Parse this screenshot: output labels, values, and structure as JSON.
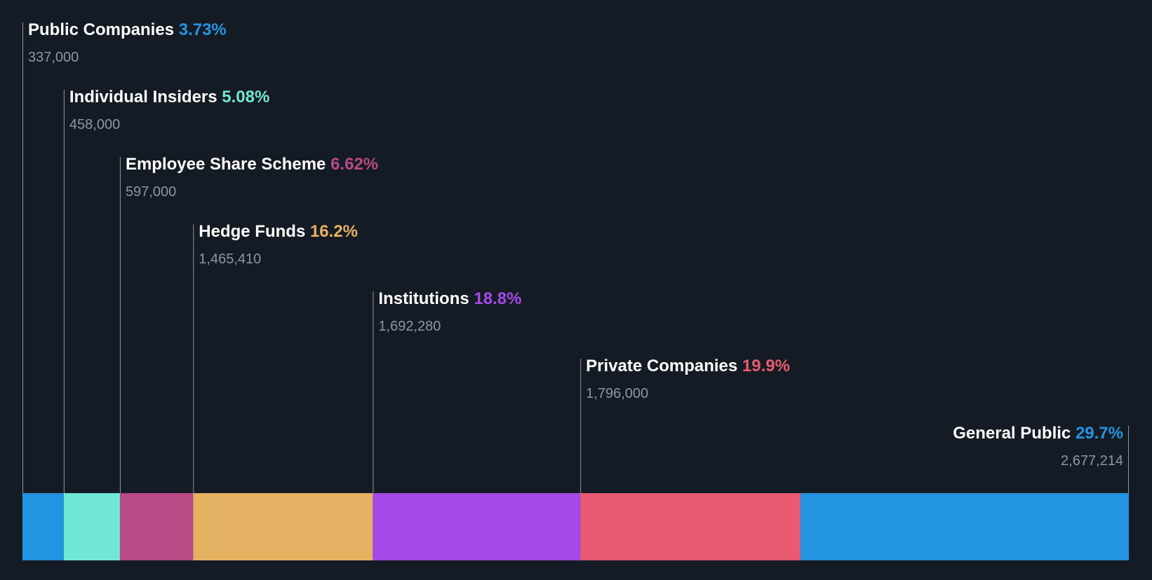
{
  "chart_data": {
    "type": "bar",
    "orientation": "horizontal-stacked-100",
    "title": "",
    "xlabel": "",
    "ylabel": "",
    "grid": false,
    "legend": "none",
    "background": "#151b24",
    "series": [
      {
        "name": "Public Companies",
        "percent_label": "3.73%",
        "percent": 3.73,
        "value": 337000,
        "value_label": "337,000",
        "color": "#2394e0"
      },
      {
        "name": "Individual Insiders",
        "percent_label": "5.08%",
        "percent": 5.08,
        "value": 458000,
        "value_label": "458,000",
        "color": "#71e7d6"
      },
      {
        "name": "Employee Share Scheme",
        "percent_label": "6.62%",
        "percent": 6.62,
        "value": 597000,
        "value_label": "597,000",
        "color": "#b84a86"
      },
      {
        "name": "Hedge Funds",
        "percent_label": "16.2%",
        "percent": 16.2,
        "value": 1465410,
        "value_label": "1,465,410",
        "color": "#e5b162"
      },
      {
        "name": "Institutions",
        "percent_label": "18.8%",
        "percent": 18.8,
        "value": 1692280,
        "value_label": "1,692,280",
        "color": "#a44ae8"
      },
      {
        "name": "Private Companies",
        "percent_label": "19.9%",
        "percent": 19.9,
        "value": 1796000,
        "value_label": "1,796,000",
        "color": "#e85a71"
      },
      {
        "name": "General Public",
        "percent_label": "29.7%",
        "percent": 29.7,
        "value": 2677214,
        "value_label": "2,677,214",
        "color": "#2394e0"
      }
    ]
  }
}
